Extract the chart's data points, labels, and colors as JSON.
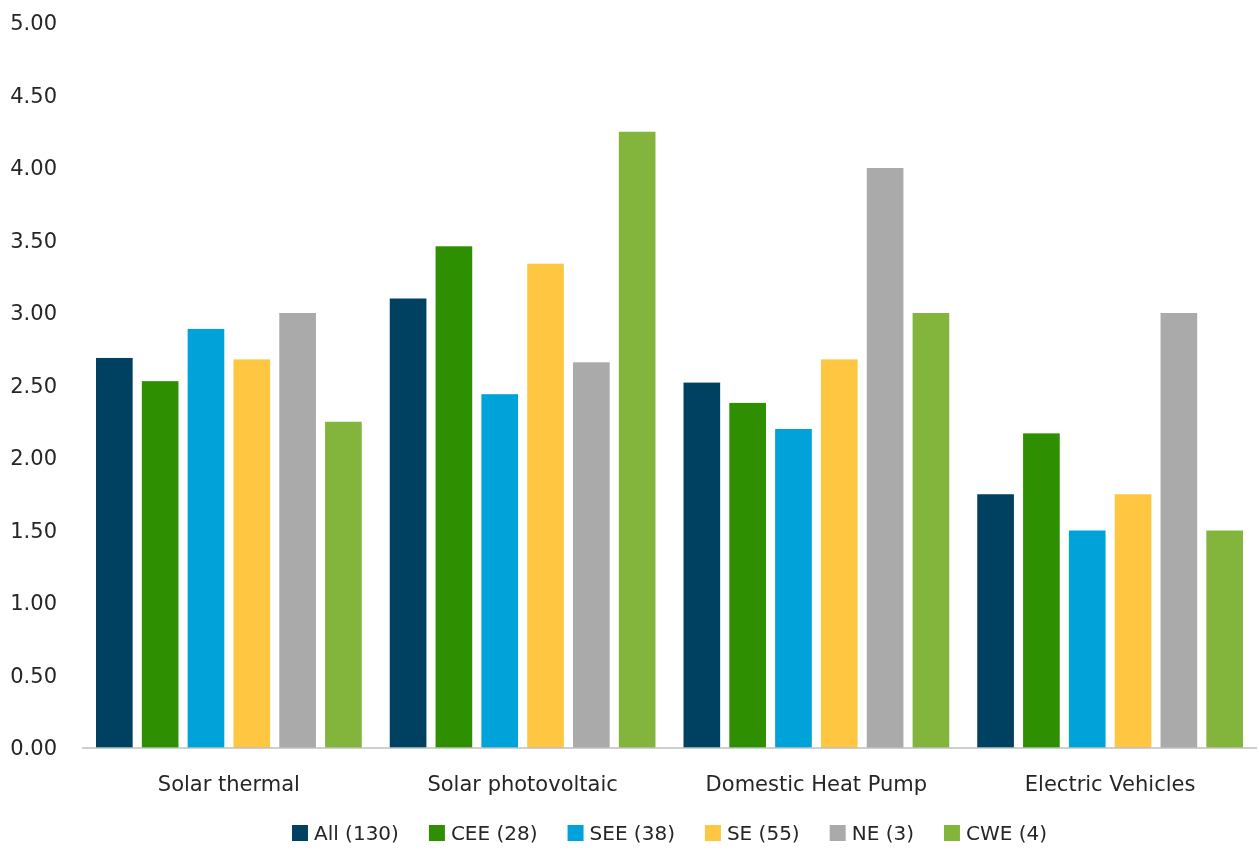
{
  "chart_data": {
    "type": "bar",
    "categories": [
      "Solar thermal",
      "Solar photovoltaic",
      "Domestic Heat Pump",
      "Electric Vehicles"
    ],
    "series": [
      {
        "name": "All (130)",
        "color": "#004060",
        "values": [
          2.69,
          3.1,
          2.52,
          1.75
        ]
      },
      {
        "name": "CEE (28)",
        "color": "#2e8f00",
        "values": [
          2.53,
          3.46,
          2.38,
          2.17
        ]
      },
      {
        "name": "SEE (38)",
        "color": "#00a3d9",
        "values": [
          2.89,
          2.44,
          2.2,
          1.5
        ]
      },
      {
        "name": "SE (55)",
        "color": "#ffc641",
        "values": [
          2.68,
          3.34,
          2.68,
          1.75
        ]
      },
      {
        "name": "NE (3)",
        "color": "#aaaaaa",
        "values": [
          3.0,
          2.66,
          4.0,
          3.0
        ]
      },
      {
        "name": "CWE (4)",
        "color": "#83b53d",
        "values": [
          2.25,
          4.25,
          3.0,
          1.5
        ]
      }
    ],
    "ylim": [
      0,
      5
    ],
    "yticks": [
      {
        "value": 0,
        "label": "0.00"
      },
      {
        "value": 0.5,
        "label": "0.50"
      },
      {
        "value": 1,
        "label": "1.00"
      },
      {
        "value": 1.5,
        "label": "1.50"
      },
      {
        "value": 2,
        "label": "2.00"
      },
      {
        "value": 2.5,
        "label": "2.50"
      },
      {
        "value": 3,
        "label": "3.00"
      },
      {
        "value": 3.5,
        "label": "3.50"
      },
      {
        "value": 4,
        "label": "4.00"
      },
      {
        "value": 4.5,
        "label": "4.50"
      },
      {
        "value": 5,
        "label": "5.00"
      }
    ],
    "grid": false,
    "legend": "bottom"
  }
}
